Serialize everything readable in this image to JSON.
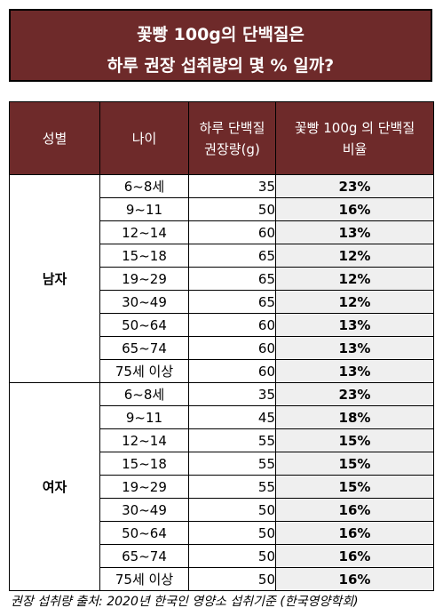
{
  "title": {
    "line1": "꽃빵 100g의 단백질은",
    "line2": "하루 권장 섭취량의 몇 % 일까?"
  },
  "headers": {
    "gender": "성별",
    "age": "나이",
    "rec_line1": "하루 단백질",
    "rec_line2": "권장량(g)",
    "ratio_line1": "꽃빵 100g 의 단백질",
    "ratio_line2": "비율"
  },
  "groups": [
    {
      "gender": "남자",
      "rows": [
        {
          "age": "6~8세",
          "rec": "35",
          "ratio": "23%"
        },
        {
          "age": "9~11",
          "rec": "50",
          "ratio": "16%"
        },
        {
          "age": "12~14",
          "rec": "60",
          "ratio": "13%"
        },
        {
          "age": "15~18",
          "rec": "65",
          "ratio": "12%"
        },
        {
          "age": "19~29",
          "rec": "65",
          "ratio": "12%"
        },
        {
          "age": "30~49",
          "rec": "65",
          "ratio": "12%"
        },
        {
          "age": "50~64",
          "rec": "60",
          "ratio": "13%"
        },
        {
          "age": "65~74",
          "rec": "60",
          "ratio": "13%"
        },
        {
          "age": "75세 이상",
          "rec": "60",
          "ratio": "13%"
        }
      ]
    },
    {
      "gender": "여자",
      "rows": [
        {
          "age": "6~8세",
          "rec": "35",
          "ratio": "23%"
        },
        {
          "age": "9~11",
          "rec": "45",
          "ratio": "18%"
        },
        {
          "age": "12~14",
          "rec": "55",
          "ratio": "15%"
        },
        {
          "age": "15~18",
          "rec": "55",
          "ratio": "15%"
        },
        {
          "age": "19~29",
          "rec": "55",
          "ratio": "15%"
        },
        {
          "age": "30~49",
          "rec": "50",
          "ratio": "16%"
        },
        {
          "age": "50~64",
          "rec": "50",
          "ratio": "16%"
        },
        {
          "age": "65~74",
          "rec": "50",
          "ratio": "16%"
        },
        {
          "age": "75세 이상",
          "rec": "50",
          "ratio": "16%"
        }
      ]
    }
  ],
  "source": "권장 섭취량 출처: 2020년 한국인 영양소 섭취기준 (한국영양학회)"
}
